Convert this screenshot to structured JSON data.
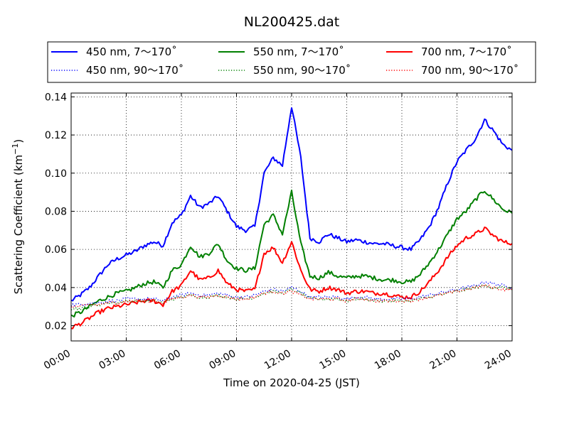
{
  "chart_data": {
    "type": "line",
    "title": "NL200425.dat",
    "xlabel": "Time on 2020-04-25 (JST)",
    "ylabel_main": "Scattering Coefficient (km",
    "ylabel_sup": "−1",
    "ylabel_close": ")",
    "xlim": [
      "00:00",
      "24:00"
    ],
    "ylim": [
      0.012,
      0.142
    ],
    "x_ticks": [
      "00:00",
      "03:00",
      "06:00",
      "09:00",
      "12:00",
      "15:00",
      "18:00",
      "21:00",
      "24:00"
    ],
    "y_ticks": [
      "0.02",
      "0.04",
      "0.06",
      "0.08",
      "0.10",
      "0.12",
      "0.14"
    ],
    "grid": true,
    "legend_position": "top (above plot), 3 columns",
    "x_hours": [
      0,
      0.5,
      1,
      1.5,
      2,
      2.5,
      3,
      3.5,
      4,
      4.5,
      5,
      5.5,
      6,
      6.5,
      7,
      7.5,
      8,
      8.5,
      9,
      9.5,
      10,
      10.5,
      11,
      11.5,
      12,
      12.5,
      13,
      13.5,
      14,
      14.5,
      15,
      15.5,
      16,
      16.5,
      17,
      17.5,
      18,
      18.5,
      19,
      19.5,
      20,
      20.5,
      21,
      21.5,
      22,
      22.5,
      23,
      23.5,
      24
    ],
    "series": [
      {
        "name": "450 nm, 7～170˚",
        "color": "#0000ff",
        "style": "solid",
        "values": [
          0.033,
          0.036,
          0.04,
          0.046,
          0.052,
          0.055,
          0.057,
          0.059,
          0.062,
          0.064,
          0.062,
          0.074,
          0.078,
          0.088,
          0.082,
          0.084,
          0.088,
          0.08,
          0.072,
          0.07,
          0.072,
          0.1,
          0.108,
          0.104,
          0.135,
          0.108,
          0.066,
          0.064,
          0.068,
          0.066,
          0.064,
          0.065,
          0.064,
          0.063,
          0.063,
          0.062,
          0.061,
          0.06,
          0.065,
          0.072,
          0.082,
          0.095,
          0.106,
          0.112,
          0.118,
          0.128,
          0.122,
          0.115,
          0.112
        ]
      },
      {
        "name": "550 nm, 7～170˚",
        "color": "#008000",
        "style": "solid",
        "values": [
          0.025,
          0.027,
          0.03,
          0.033,
          0.035,
          0.037,
          0.038,
          0.04,
          0.042,
          0.043,
          0.04,
          0.049,
          0.052,
          0.062,
          0.056,
          0.058,
          0.063,
          0.054,
          0.05,
          0.049,
          0.05,
          0.073,
          0.078,
          0.068,
          0.09,
          0.063,
          0.046,
          0.045,
          0.048,
          0.046,
          0.045,
          0.046,
          0.046,
          0.045,
          0.044,
          0.044,
          0.043,
          0.043,
          0.047,
          0.053,
          0.06,
          0.068,
          0.076,
          0.08,
          0.086,
          0.091,
          0.086,
          0.081,
          0.079
        ]
      },
      {
        "name": "700 nm, 7～170˚",
        "color": "#ff0000",
        "style": "solid",
        "values": [
          0.019,
          0.021,
          0.024,
          0.027,
          0.029,
          0.03,
          0.031,
          0.032,
          0.033,
          0.033,
          0.031,
          0.038,
          0.041,
          0.049,
          0.044,
          0.045,
          0.049,
          0.042,
          0.039,
          0.038,
          0.039,
          0.058,
          0.061,
          0.053,
          0.064,
          0.049,
          0.039,
          0.038,
          0.04,
          0.039,
          0.037,
          0.038,
          0.038,
          0.037,
          0.037,
          0.036,
          0.035,
          0.035,
          0.038,
          0.043,
          0.049,
          0.056,
          0.062,
          0.066,
          0.068,
          0.071,
          0.067,
          0.064,
          0.063
        ]
      },
      {
        "name": "450 nm, 90～170˚",
        "color": "#0000ff",
        "style": "dotted",
        "values": [
          0.031,
          0.031,
          0.032,
          0.032,
          0.033,
          0.033,
          0.034,
          0.034,
          0.034,
          0.034,
          0.033,
          0.035,
          0.036,
          0.037,
          0.036,
          0.036,
          0.037,
          0.036,
          0.035,
          0.035,
          0.036,
          0.038,
          0.039,
          0.038,
          0.04,
          0.038,
          0.035,
          0.035,
          0.035,
          0.035,
          0.034,
          0.035,
          0.035,
          0.034,
          0.034,
          0.034,
          0.034,
          0.034,
          0.035,
          0.036,
          0.037,
          0.038,
          0.039,
          0.04,
          0.041,
          0.043,
          0.042,
          0.041,
          0.04
        ]
      },
      {
        "name": "550 nm, 90～170˚",
        "color": "#008000",
        "style": "dotted",
        "values": [
          0.029,
          0.029,
          0.03,
          0.031,
          0.032,
          0.032,
          0.033,
          0.033,
          0.033,
          0.033,
          0.032,
          0.034,
          0.035,
          0.036,
          0.035,
          0.035,
          0.036,
          0.035,
          0.034,
          0.034,
          0.035,
          0.037,
          0.038,
          0.037,
          0.039,
          0.037,
          0.034,
          0.034,
          0.034,
          0.034,
          0.033,
          0.034,
          0.034,
          0.033,
          0.033,
          0.033,
          0.033,
          0.033,
          0.034,
          0.035,
          0.036,
          0.037,
          0.038,
          0.039,
          0.04,
          0.041,
          0.04,
          0.04,
          0.039
        ]
      },
      {
        "name": "700 nm, 90～170˚",
        "color": "#ff0000",
        "style": "dotted",
        "values": [
          0.03,
          0.03,
          0.031,
          0.031,
          0.032,
          0.032,
          0.033,
          0.033,
          0.033,
          0.033,
          0.032,
          0.034,
          0.035,
          0.036,
          0.035,
          0.035,
          0.036,
          0.035,
          0.034,
          0.034,
          0.035,
          0.037,
          0.038,
          0.037,
          0.038,
          0.036,
          0.034,
          0.034,
          0.034,
          0.034,
          0.033,
          0.034,
          0.034,
          0.033,
          0.033,
          0.033,
          0.033,
          0.033,
          0.034,
          0.035,
          0.036,
          0.037,
          0.038,
          0.039,
          0.04,
          0.041,
          0.04,
          0.039,
          0.039
        ]
      }
    ]
  }
}
